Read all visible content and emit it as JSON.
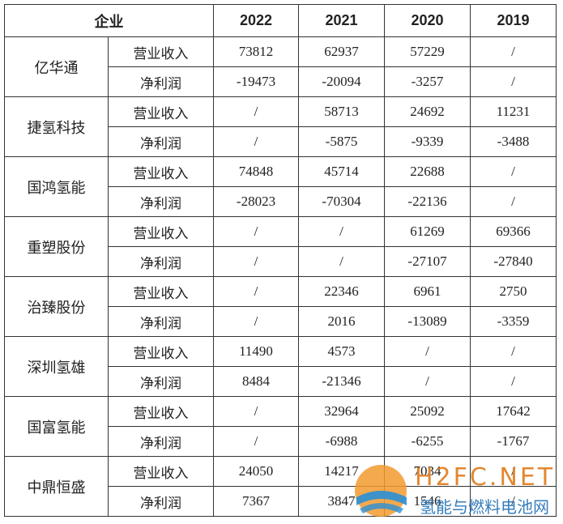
{
  "table": {
    "header": [
      "企业",
      "2022",
      "2021",
      "2020",
      "2019"
    ],
    "companies": [
      {
        "name": "亿华通",
        "rows": [
          [
            "营业收入",
            "73812",
            "62937",
            "57229",
            "/"
          ],
          [
            "净利润",
            "-19473",
            "-20094",
            "-3257",
            "/"
          ]
        ]
      },
      {
        "name": "捷氢科技",
        "rows": [
          [
            "营业收入",
            "/",
            "58713",
            "24692",
            "11231"
          ],
          [
            "净利润",
            "/",
            "-5875",
            "-9339",
            "-3488"
          ]
        ]
      },
      {
        "name": "国鸿氢能",
        "rows": [
          [
            "营业收入",
            "74848",
            "45714",
            "22688",
            "/"
          ],
          [
            "净利润",
            "-28023",
            "-70304",
            "-22136",
            "/"
          ]
        ]
      },
      {
        "name": "重塑股份",
        "rows": [
          [
            "营业收入",
            "/",
            "/",
            "61269",
            "69366"
          ],
          [
            "净利润",
            "/",
            "/",
            "-27107",
            "-27840"
          ]
        ]
      },
      {
        "name": "治臻股份",
        "rows": [
          [
            "营业收入",
            "/",
            "22346",
            "6961",
            "2750"
          ],
          [
            "净利润",
            "/",
            "2016",
            "-13089",
            "-3359"
          ]
        ]
      },
      {
        "name": "深圳氢雄",
        "rows": [
          [
            "营业收入",
            "11490",
            "4573",
            "/",
            "/"
          ],
          [
            "净利润",
            "8484",
            "-21346",
            "/",
            "/"
          ]
        ]
      },
      {
        "name": "国富氢能",
        "rows": [
          [
            "营业收入",
            "/",
            "32964",
            "25092",
            "17642"
          ],
          [
            "净利润",
            "/",
            "-6988",
            "-6255",
            "-1767"
          ]
        ]
      },
      {
        "name": "中鼎恒盛",
        "rows": [
          [
            "营业收入",
            "24050",
            "14217",
            "7034",
            "/"
          ],
          [
            "净利润",
            "7367",
            "3847",
            "1546",
            "/"
          ]
        ]
      }
    ]
  },
  "watermark": {
    "logo": "H2FC.NET",
    "caption": "氢能与燃料电池网"
  }
}
